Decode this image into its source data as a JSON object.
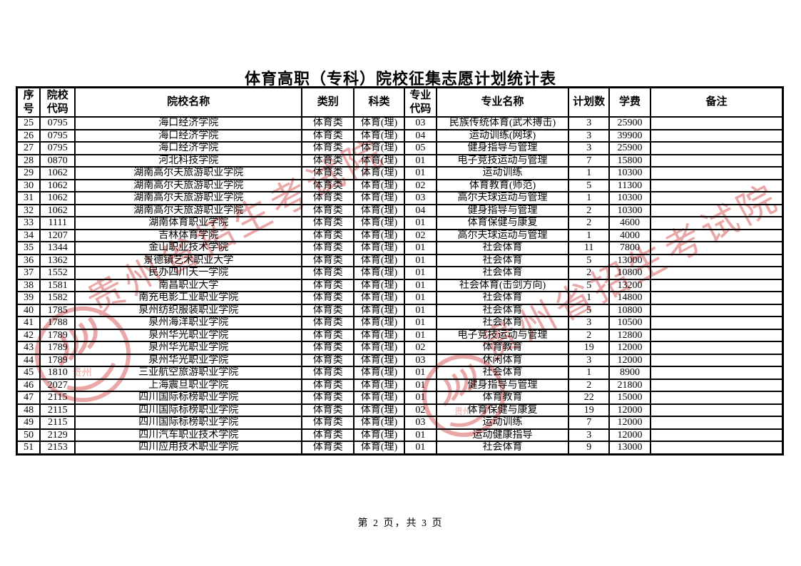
{
  "page": {
    "title": "体育高职（专科）院校征集志愿计划统计表",
    "footer": "第 2 页，共 3 页"
  },
  "watermark": {
    "text": "贵州省招生考试院",
    "seal_label": "贵州",
    "color": "#d95f5f"
  },
  "colors": {
    "background": "#ffffff",
    "table_border": "#000000",
    "text": "#000000"
  },
  "table": {
    "headers": [
      "序号",
      "院校代码",
      "院校名称",
      "类别",
      "科类",
      "专业代码",
      "专业名称",
      "计划数",
      "学费",
      "备注"
    ],
    "col_widths_pct": [
      3.06,
      4.55,
      29.62,
      6.78,
      6.59,
      4.18,
      17.27,
      5.29,
      5.39,
      17.27
    ],
    "rows": [
      [
        "25",
        "0795",
        "海口经济学院",
        "体育类",
        "体育(理)",
        "03",
        "民族传统体育(武术搏击)",
        "3",
        "25900",
        ""
      ],
      [
        "26",
        "0795",
        "海口经济学院",
        "体育类",
        "体育(理)",
        "04",
        "运动训练(网球)",
        "3",
        "39900",
        ""
      ],
      [
        "27",
        "0795",
        "海口经济学院",
        "体育类",
        "体育(理)",
        "05",
        "健身指导与管理",
        "3",
        "25900",
        ""
      ],
      [
        "28",
        "0870",
        "河北科技学院",
        "体育类",
        "体育(理)",
        "01",
        "电子竞技运动与管理",
        "7",
        "15800",
        ""
      ],
      [
        "29",
        "1062",
        "湖南高尔夫旅游职业学院",
        "体育类",
        "体育(理)",
        "01",
        "运动训练",
        "1",
        "10300",
        ""
      ],
      [
        "30",
        "1062",
        "湖南高尔夫旅游职业学院",
        "体育类",
        "体育(理)",
        "02",
        "体育教育(师范)",
        "5",
        "11300",
        ""
      ],
      [
        "31",
        "1062",
        "湖南高尔夫旅游职业学院",
        "体育类",
        "体育(理)",
        "03",
        "高尔夫球运动与管理",
        "1",
        "10300",
        ""
      ],
      [
        "32",
        "1062",
        "湖南高尔夫旅游职业学院",
        "体育类",
        "体育(理)",
        "04",
        "健身指导与管理",
        "2",
        "10300",
        ""
      ],
      [
        "33",
        "1111",
        "湖南体育职业学院",
        "体育类",
        "体育(理)",
        "01",
        "体育保健与康复",
        "2",
        "4600",
        ""
      ],
      [
        "34",
        "1207",
        "吉林体育学院",
        "体育类",
        "体育(理)",
        "02",
        "高尔夫球运动与管理",
        "1",
        "4000",
        ""
      ],
      [
        "35",
        "1344",
        "金山职业技术学院",
        "体育类",
        "体育(理)",
        "01",
        "社会体育",
        "11",
        "7800",
        ""
      ],
      [
        "36",
        "1362",
        "景德镇艺术职业大学",
        "体育类",
        "体育(理)",
        "01",
        "社会体育",
        "5",
        "13000",
        ""
      ],
      [
        "37",
        "1552",
        "民办四川天一学院",
        "体育类",
        "体育(理)",
        "01",
        "社会体育",
        "2",
        "10800",
        ""
      ],
      [
        "38",
        "1581",
        "南昌职业大学",
        "体育类",
        "体育(理)",
        "01",
        "社会体育(击剑方向)",
        "5",
        "13200",
        ""
      ],
      [
        "39",
        "1582",
        "南充电影工业职业学院",
        "体育类",
        "体育(理)",
        "01",
        "社会体育",
        "1",
        "14800",
        ""
      ],
      [
        "40",
        "1785",
        "泉州纺织服装职业学院",
        "体育类",
        "体育(理)",
        "01",
        "社会体育",
        "5",
        "10800",
        ""
      ],
      [
        "41",
        "1788",
        "泉州海洋职业学院",
        "体育类",
        "体育(理)",
        "01",
        "社会体育",
        "3",
        "10500",
        ""
      ],
      [
        "42",
        "1789",
        "泉州华光职业学院",
        "体育类",
        "体育(理)",
        "01",
        "电子竞技运动与管理",
        "2",
        "12800",
        ""
      ],
      [
        "43",
        "1789",
        "泉州华光职业学院",
        "体育类",
        "体育(理)",
        "02",
        "体育教育",
        "19",
        "12000",
        ""
      ],
      [
        "44",
        "1789",
        "泉州华光职业学院",
        "体育类",
        "体育(理)",
        "03",
        "休闲体育",
        "3",
        "12000",
        ""
      ],
      [
        "45",
        "1810",
        "三亚航空旅游职业学院",
        "体育类",
        "体育(理)",
        "01",
        "社会体育",
        "1",
        "8900",
        ""
      ],
      [
        "46",
        "2027",
        "上海震旦职业学院",
        "体育类",
        "体育(理)",
        "01",
        "健身指导与管理",
        "2",
        "21800",
        ""
      ],
      [
        "47",
        "2115",
        "四川国际标榜职业学院",
        "体育类",
        "体育(理)",
        "01",
        "体育教育",
        "22",
        "15000",
        ""
      ],
      [
        "48",
        "2115",
        "四川国际标榜职业学院",
        "体育类",
        "体育(理)",
        "02",
        "体育保健与康复",
        "19",
        "12000",
        ""
      ],
      [
        "49",
        "2115",
        "四川国际标榜职业学院",
        "体育类",
        "体育(理)",
        "03",
        "运动训练",
        "7",
        "12000",
        ""
      ],
      [
        "50",
        "2129",
        "四川汽车职业技术学院",
        "体育类",
        "体育(理)",
        "01",
        "运动健康指导",
        "3",
        "12000",
        ""
      ],
      [
        "51",
        "2153",
        "四川应用技术职业学院",
        "体育类",
        "体育(理)",
        "01",
        "社会体育",
        "9",
        "13000",
        ""
      ]
    ]
  }
}
